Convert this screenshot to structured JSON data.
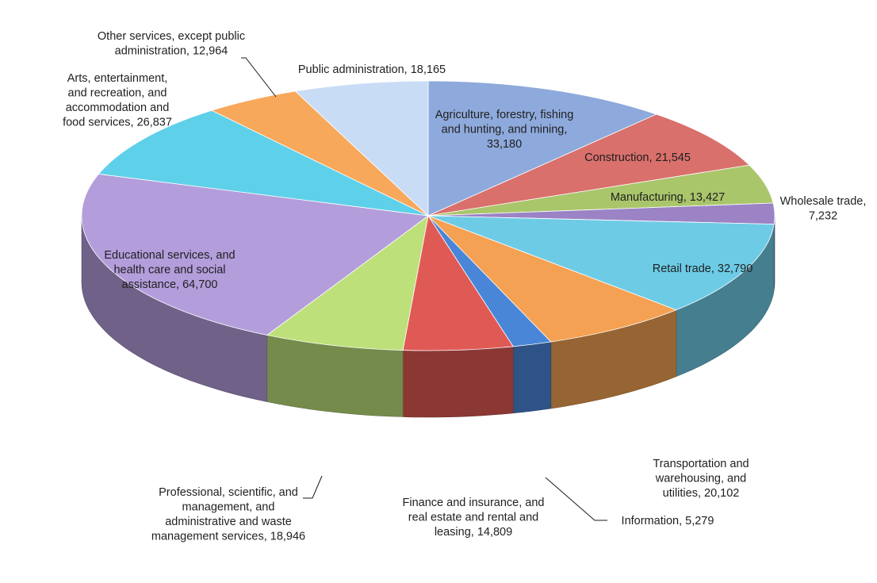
{
  "chart_data": {
    "type": "pie",
    "title": "",
    "slices": [
      {
        "name": "Agriculture, forestry, fishing and hunting, and mining",
        "value": 33180,
        "color": "#8eaadc",
        "label_lines": [
          "Agriculture, forestry, fishing",
          "and hunting, and mining,",
          "33,180"
        ]
      },
      {
        "name": "Construction",
        "value": 21545,
        "color": "#d9706b",
        "label_lines": [
          "Construction, 21,545"
        ]
      },
      {
        "name": "Manufacturing",
        "value": 13427,
        "color": "#a9c66b",
        "label_lines": [
          "Manufacturing, 13,427"
        ]
      },
      {
        "name": "Wholesale trade",
        "value": 7232,
        "color": "#9b83c6",
        "label_lines": [
          "Wholesale trade,",
          "7,232"
        ]
      },
      {
        "name": "Retail trade",
        "value": 32790,
        "color": "#6dcbe6",
        "label_lines": [
          "Retail trade, 32,790"
        ]
      },
      {
        "name": "Transportation and warehousing, and utilities",
        "value": 20102,
        "color": "#f4a153",
        "label_lines": [
          "Transportation and",
          "warehousing, and",
          "utilities, 20,102"
        ]
      },
      {
        "name": "Information",
        "value": 5279,
        "color": "#4a86d8",
        "label_lines": [
          "Information, 5,279"
        ]
      },
      {
        "name": "Finance and insurance, and real estate and rental and leasing",
        "value": 14809,
        "color": "#e05a55",
        "label_lines": [
          "Finance and insurance, and",
          "real estate and rental and",
          "leasing, 14,809"
        ]
      },
      {
        "name": "Professional, scientific, and management, and administrative and waste management services",
        "value": 18946,
        "color": "#bde07a",
        "label_lines": [
          "Professional, scientific, and",
          "management, and",
          "administrative and waste",
          "management services, 18,946"
        ]
      },
      {
        "name": "Educational services, and health care and social assistance",
        "value": 64700,
        "color": "#b39ddb",
        "label_lines": [
          "Educational services, and",
          "health care and social",
          "assistance, 64,700"
        ]
      },
      {
        "name": "Arts, entertainment, and recreation, and accommodation and food services",
        "value": 26837,
        "color": "#5fd0ea",
        "label_lines": [
          "Arts, entertainment,",
          "and recreation, and",
          "accommodation and",
          "food services, 26,837"
        ]
      },
      {
        "name": "Other services, except public administration",
        "value": 12964,
        "color": "#f8a85a",
        "label_lines": [
          "Other services, except public",
          "administration, 12,964"
        ]
      },
      {
        "name": "Public administration",
        "value": 18165,
        "color": "#c9dcf6",
        "label_lines": [
          "Public administration, 18,165"
        ]
      }
    ]
  }
}
